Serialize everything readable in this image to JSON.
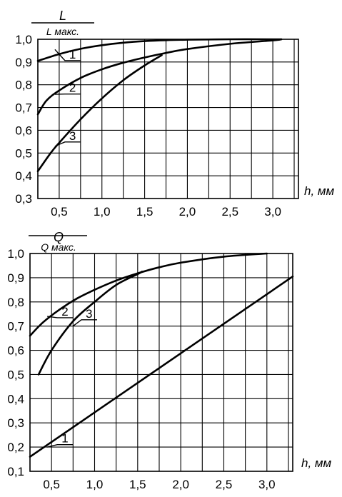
{
  "chart_data": [
    {
      "type": "line",
      "title": "",
      "ylabel_top": "L",
      "ylabel_bottom": "L макс.",
      "xlabel": "h, мм",
      "xlim": [
        0.25,
        3.3
      ],
      "ylim": [
        0.3,
        1.0
      ],
      "x_ticks": [
        "0,5",
        "1,0",
        "1,5",
        "2,0",
        "2,5",
        "3,0"
      ],
      "x_tick_values": [
        0.5,
        1.0,
        1.5,
        2.0,
        2.5,
        3.0
      ],
      "y_ticks": [
        "0,3",
        "0,4",
        "0,5",
        "0,6",
        "0,7",
        "0,8",
        "0,9",
        "1,0"
      ],
      "y_tick_values": [
        0.3,
        0.4,
        0.5,
        0.6,
        0.7,
        0.8,
        0.9,
        1.0
      ],
      "x_grid": [
        0.25,
        0.5,
        0.75,
        1.0,
        1.25,
        1.5,
        1.75,
        2.0,
        2.25,
        2.5,
        2.75,
        3.0,
        3.25
      ],
      "grid": true,
      "series": [
        {
          "name": "1",
          "x": [
            0.25,
            0.5,
            0.75,
            1.0,
            1.25,
            1.5,
            1.75,
            2.0,
            2.5,
            3.0,
            3.1
          ],
          "y": [
            0.905,
            0.935,
            0.958,
            0.974,
            0.985,
            0.992,
            0.996,
            0.998,
            1.0,
            1.0,
            1.0
          ]
        },
        {
          "name": "2",
          "x": [
            0.25,
            0.35,
            0.5,
            0.75,
            1.0,
            1.25,
            1.5,
            1.75,
            2.0,
            2.5,
            3.0,
            3.1
          ],
          "y": [
            0.67,
            0.73,
            0.775,
            0.83,
            0.868,
            0.897,
            0.92,
            0.94,
            0.957,
            0.98,
            0.995,
            1.0
          ]
        },
        {
          "name": "3",
          "x": [
            0.25,
            0.4,
            0.5,
            0.75,
            1.0,
            1.25,
            1.5,
            1.7
          ],
          "y": [
            0.42,
            0.5,
            0.545,
            0.648,
            0.74,
            0.82,
            0.885,
            0.93
          ]
        }
      ],
      "curve_labels": [
        {
          "text": "1",
          "series": "1",
          "at_x": 0.6,
          "line_to": [
            0.45,
            0.955
          ]
        },
        {
          "text": "2",
          "series": "2",
          "at_x": 0.6,
          "line_to": [
            0.45,
            0.758
          ]
        },
        {
          "text": "3",
          "series": "3",
          "at_x": 0.6,
          "line_to": [
            0.45,
            0.53
          ]
        }
      ]
    },
    {
      "type": "line",
      "title": "",
      "ylabel_top": "Q",
      "ylabel_bottom": "Q макс.",
      "xlabel": "h, мм",
      "xlim": [
        0.25,
        3.3
      ],
      "ylim": [
        0.1,
        1.0
      ],
      "x_ticks": [
        "0,5",
        "1,0",
        "1,5",
        "2,0",
        "2,5",
        "3,0"
      ],
      "x_tick_values": [
        0.5,
        1.0,
        1.5,
        2.0,
        2.5,
        3.0
      ],
      "y_ticks": [
        "0,1",
        "0,2",
        "0,3",
        "0,4",
        "0,5",
        "0,6",
        "0,7",
        "0,8",
        "0,9",
        "1,0"
      ],
      "y_tick_values": [
        0.1,
        0.2,
        0.3,
        0.4,
        0.5,
        0.6,
        0.7,
        0.8,
        0.9,
        1.0
      ],
      "x_grid": [
        0.25,
        0.5,
        0.75,
        1.0,
        1.25,
        1.5,
        1.75,
        2.0,
        2.25,
        2.5,
        2.75,
        3.0,
        3.25
      ],
      "grid": true,
      "series": [
        {
          "name": "1",
          "x": [
            0.25,
            3.3
          ],
          "y": [
            0.16,
            0.905
          ]
        },
        {
          "name": "2",
          "x": [
            0.25,
            0.4,
            0.6,
            0.8,
            1.0,
            1.25,
            1.5,
            1.75,
            2.0,
            2.5,
            3.0
          ],
          "y": [
            0.66,
            0.715,
            0.77,
            0.815,
            0.85,
            0.888,
            0.918,
            0.943,
            0.962,
            0.987,
            1.0
          ]
        },
        {
          "name": "3",
          "x": [
            0.35,
            0.5,
            0.75,
            1.0,
            1.25,
            1.5,
            1.55
          ],
          "y": [
            0.5,
            0.6,
            0.72,
            0.8,
            0.87,
            0.915,
            0.925
          ]
        }
      ],
      "curve_labels": [
        {
          "text": "1",
          "series": "1",
          "at_x": 0.6,
          "line_to": [
            0.45,
            0.2
          ]
        },
        {
          "text": "2",
          "series": "2",
          "at_x": 0.6,
          "line_to": [
            0.45,
            0.74
          ]
        },
        {
          "text": "3",
          "series": "3",
          "at_x": 0.88,
          "line_to": [
            0.75,
            0.7
          ]
        }
      ]
    }
  ]
}
